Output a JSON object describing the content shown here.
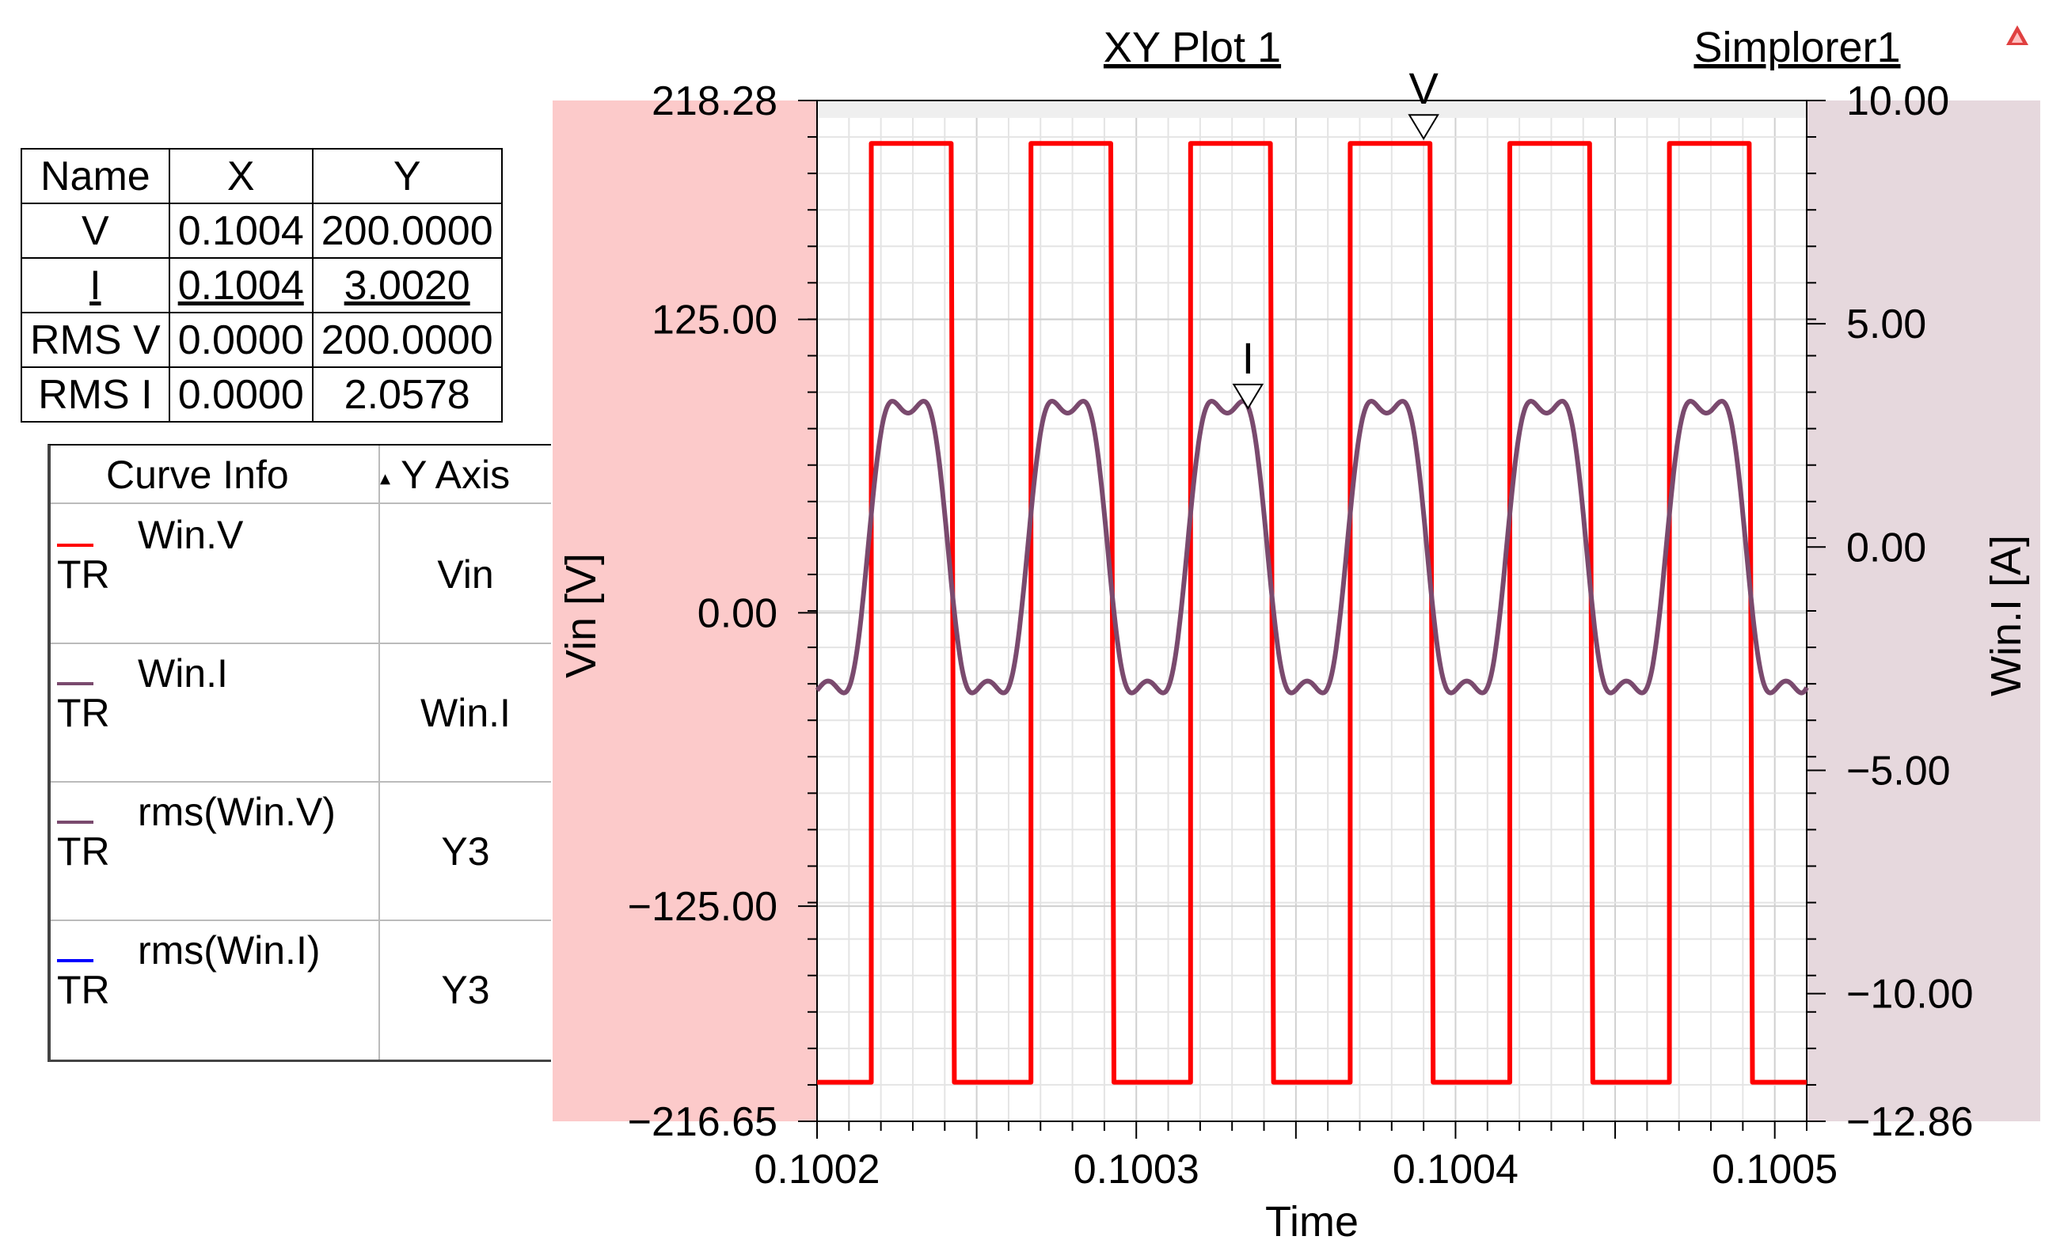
{
  "header": {
    "plot_title": "XY Plot 1",
    "project_name": "Simplorer1"
  },
  "marker_table": {
    "columns": [
      "Name",
      "X",
      "Y"
    ],
    "rows": [
      {
        "name": "V",
        "x": "0.1004",
        "y": "200.0000"
      },
      {
        "name": "I",
        "x": "0.1004",
        "y": "3.0020"
      },
      {
        "name": "RMS V",
        "x": "0.0000",
        "y": "200.0000"
      },
      {
        "name": "RMS I",
        "x": "0.0000",
        "y": "2.0578"
      }
    ]
  },
  "curve_info": {
    "col_curve": "Curve Info",
    "col_axis": "Y Axis",
    "sort_glyph": "▴",
    "rows": [
      {
        "name": "Win.V",
        "tr": "TR",
        "axis": "Vin",
        "color": "#ff0000"
      },
      {
        "name": "Win.I",
        "tr": "TR",
        "axis": "Win.I",
        "color": "#7a4a6e"
      },
      {
        "name": "rms(Win.V)",
        "tr": "TR",
        "axis": "Y3",
        "color": "#7a4a6e"
      },
      {
        "name": "rms(Win.I)",
        "tr": "TR",
        "axis": "Y3",
        "color": "#0000ff"
      }
    ]
  },
  "chart_data": {
    "type": "line",
    "title": "XY Plot 1",
    "xlabel": "Time",
    "ylabel_left": "Vin [V]",
    "ylabel_right": "Win.I [A]",
    "xlim": [
      0.1002,
      0.10051
    ],
    "ylim_left": [
      -216.65,
      218.28
    ],
    "ylim_right": [
      -12.86,
      10.0
    ],
    "x_ticks": [
      0.1002,
      0.1003,
      0.1004,
      0.1005
    ],
    "x_tick_labels": [
      "0.1002",
      "0.1003",
      "0.1004",
      "0.1005"
    ],
    "y_left_ticks": [
      218.28,
      125.0,
      0.0,
      -125.0,
      -216.65
    ],
    "y_left_tick_labels": [
      "218.28",
      "125.00",
      "0.00",
      "−125.00",
      "−216.65"
    ],
    "y_right_ticks": [
      10.0,
      5.0,
      0.0,
      -5.0,
      -10.0,
      -12.86
    ],
    "y_right_tick_labels": [
      "10.00",
      "5.00",
      "0.00",
      "−5.00",
      "−10.00",
      "−12.86"
    ],
    "grid": true,
    "colors": {
      "V": "#ff0000",
      "I": "#7a4a6e",
      "left_axis_bg": "#fccaca",
      "right_axis_bg": "#e6d8dd"
    },
    "series": [
      {
        "name": "Win.V",
        "axis": "left",
        "color": "#ff0000",
        "x": [
          0.1002,
          0.100217,
          0.100217,
          0.100242,
          0.100243,
          0.100267,
          0.100267,
          0.100292,
          0.100293,
          0.100317,
          0.100317,
          0.100342,
          0.100343,
          0.100367,
          0.100367,
          0.100392,
          0.100393,
          0.100417,
          0.100417,
          0.100442,
          0.100443,
          0.100467,
          0.100467,
          0.100492,
          0.100493,
          0.10051
        ],
        "y": [
          -200,
          -200,
          200,
          200,
          -200,
          -200,
          200,
          200,
          -200,
          -200,
          200,
          200,
          -200,
          -200,
          200,
          200,
          -200,
          -200,
          200,
          200,
          -200,
          -200,
          200,
          200,
          -200,
          -200
        ]
      },
      {
        "name": "Win.I",
        "axis": "right",
        "color": "#7a4a6e",
        "model": {
          "offset_x": 0.1002,
          "period": 5e-05,
          "amplitude": 3.0,
          "peak_phase": 0.57,
          "third_harmonic": 0.2
        }
      }
    ],
    "markers": [
      {
        "label": "V",
        "x": 0.10039,
        "y": 200.0,
        "axis": "left"
      },
      {
        "label": "I",
        "x": 0.100335,
        "y": 3.002,
        "axis": "right"
      }
    ]
  }
}
